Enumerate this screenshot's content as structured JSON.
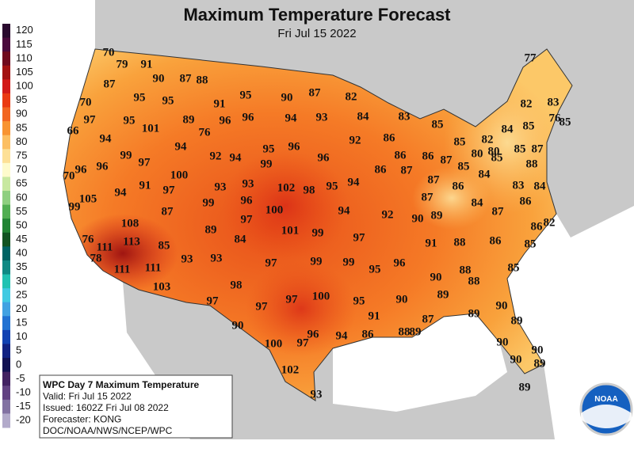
{
  "header": {
    "title": "Maximum Temperature Forecast",
    "subtitle": "Fri Jul 15 2022"
  },
  "legend": [
    {
      "value": 120,
      "color": "#2a0a2e"
    },
    {
      "value": 115,
      "color": "#4a0a3c"
    },
    {
      "value": 110,
      "color": "#700a1e"
    },
    {
      "value": 105,
      "color": "#a31212"
    },
    {
      "value": 100,
      "color": "#d21a18"
    },
    {
      "value": 95,
      "color": "#ea3a12"
    },
    {
      "value": 90,
      "color": "#f26622"
    },
    {
      "value": 85,
      "color": "#f89432"
    },
    {
      "value": 80,
      "color": "#fcbf62"
    },
    {
      "value": 75,
      "color": "#fde096"
    },
    {
      "value": 70,
      "color": "#fefbcc"
    },
    {
      "value": 65,
      "color": "#c8e8a0"
    },
    {
      "value": 60,
      "color": "#8fcf80"
    },
    {
      "value": 55,
      "color": "#52ae52"
    },
    {
      "value": 50,
      "color": "#228434"
    },
    {
      "value": 45,
      "color": "#125422"
    },
    {
      "value": 40,
      "color": "#006464"
    },
    {
      "value": 35,
      "color": "#108a84"
    },
    {
      "value": 30,
      "color": "#22c2b2"
    },
    {
      "value": 25,
      "color": "#42cae2"
    },
    {
      "value": 20,
      "color": "#42a2e2"
    },
    {
      "value": 15,
      "color": "#2272d2"
    },
    {
      "value": 10,
      "color": "#1242b2"
    },
    {
      "value": 5,
      "color": "#122282"
    },
    {
      "value": 0,
      "color": "#121252"
    },
    {
      "value": -5,
      "color": "#422262"
    },
    {
      "value": -10,
      "color": "#624282"
    },
    {
      "value": -15,
      "color": "#8272a2"
    },
    {
      "value": -20,
      "color": "#b2aaca"
    }
  ],
  "info_box": [
    "WPC Day 7 Maximum Temperature",
    "Valid: Fri Jul 15 2022",
    "Issued: 1602Z Fri Jul 08 2022",
    "Forecaster: KONG",
    "DOC/NOAA/NWS/NCEP/WPC"
  ],
  "logo": "NOAA",
  "temperatures": [
    70,
    79,
    91,
    90,
    87,
    88,
    87,
    95,
    95,
    91,
    95,
    90,
    87,
    82,
    77,
    70,
    97,
    95,
    101,
    89,
    96,
    96,
    94,
    93,
    84,
    83,
    85,
    82,
    83,
    66,
    94,
    76,
    94,
    92,
    94,
    95,
    96,
    92,
    86,
    86,
    85,
    84,
    85,
    76,
    85,
    86,
    82,
    80,
    80,
    85,
    87,
    99,
    97,
    96,
    96,
    70,
    100,
    99,
    96,
    86,
    87,
    87,
    85,
    85,
    84,
    88,
    91,
    94,
    97,
    93,
    93,
    102,
    98,
    95,
    94,
    87,
    86,
    83,
    84,
    105,
    99,
    96,
    100,
    94,
    92,
    90,
    89,
    87,
    84,
    87,
    86,
    99,
    87,
    97,
    101,
    99,
    97,
    91,
    88,
    86,
    86,
    82,
    85,
    108,
    89,
    84,
    76,
    111,
    113,
    85,
    78,
    93,
    93,
    97,
    99,
    99,
    95,
    96,
    88,
    88,
    85,
    111,
    111,
    90,
    89,
    103,
    98,
    97,
    100,
    95,
    90,
    97,
    97,
    90,
    91,
    87,
    89,
    88,
    89,
    89,
    90,
    86,
    96,
    94,
    100,
    97,
    90,
    90,
    90,
    89,
    102,
    89,
    93
  ]
}
